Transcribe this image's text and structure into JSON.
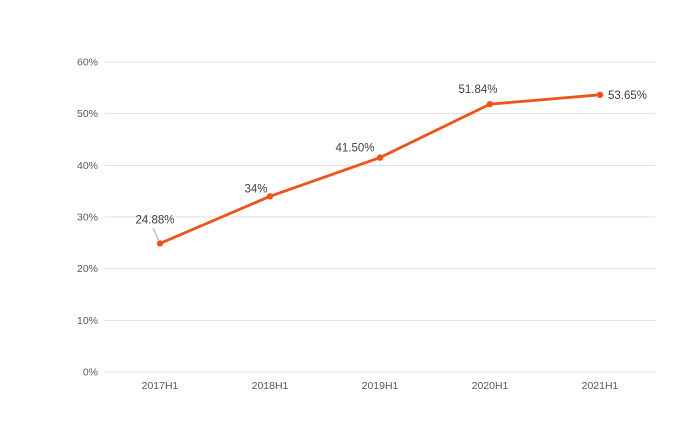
{
  "page": {
    "background": "#ffffff"
  },
  "chart_data": {
    "type": "line",
    "title": "",
    "xlabel": "",
    "ylabel": "",
    "categories": [
      "2017H1",
      "2018H1",
      "2019H1",
      "2020H1",
      "2021H1"
    ],
    "series": [
      {
        "name": "",
        "values": [
          24.88,
          34,
          41.5,
          51.84,
          53.65
        ],
        "data_labels": [
          "24.88%",
          "34%",
          "41.50%",
          "51.84%",
          "53.65%"
        ],
        "label_placement": [
          "above-with-leader",
          "above",
          "above",
          "above",
          "right"
        ]
      }
    ],
    "ylim": [
      0,
      60
    ],
    "y_ticks": [
      "0%",
      "10%",
      "20%",
      "30%",
      "40%",
      "50%",
      "60%"
    ],
    "y_tick_values": [
      0,
      10,
      20,
      30,
      40,
      50,
      60
    ],
    "grid": true,
    "legend_position": "none",
    "colors": {
      "line": "#ed5418",
      "marker": "#ed5418",
      "grid": "#e0e0e0",
      "axis_text": "#595959",
      "data_label_text": "#404040",
      "leader_line": "#a6a6a6",
      "background": "#ffffff"
    }
  }
}
